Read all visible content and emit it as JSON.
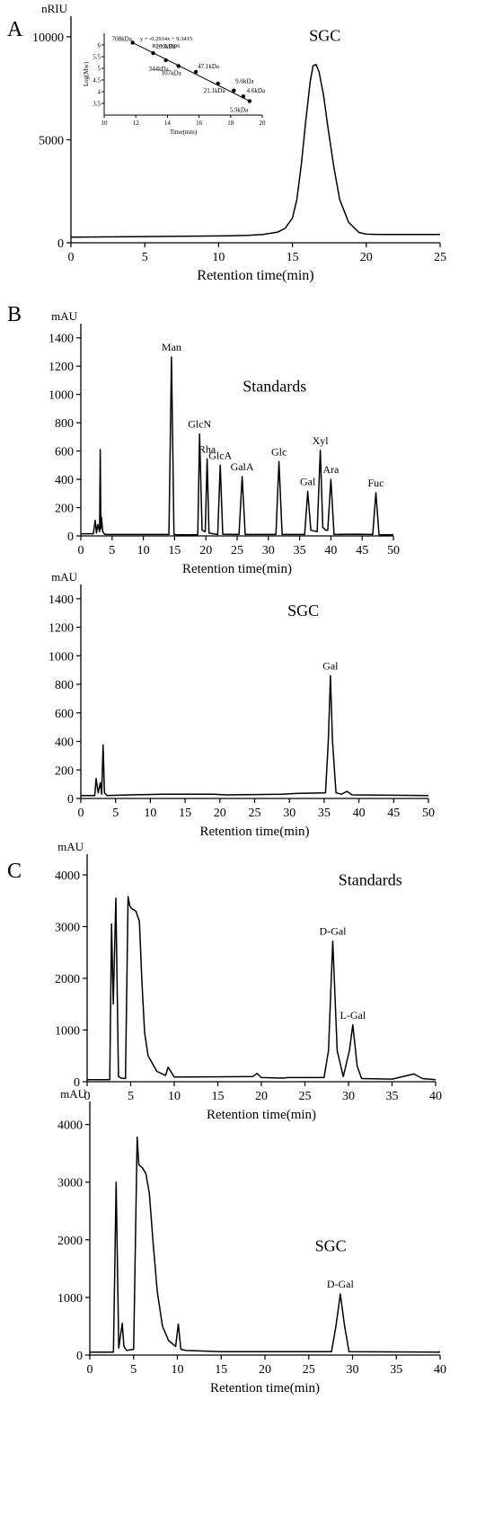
{
  "chart_data": [
    {
      "panel": "A",
      "type": "line",
      "ylabel": "nRIU",
      "xlabel": "Retention time(min)",
      "xlim": [
        0,
        25
      ],
      "ylim": [
        0,
        11000
      ],
      "xticks": [
        0,
        5,
        10,
        15,
        20,
        25
      ],
      "yticks": [
        0,
        5000,
        10000
      ],
      "annotations": [
        {
          "text": "SGC",
          "x": 17.2,
          "y": 9800
        }
      ],
      "series": [
        {
          "x": [
            0,
            5,
            10,
            12,
            13,
            14,
            14.5,
            15,
            15.3,
            15.6,
            15.9,
            16.2,
            16.4,
            16.6,
            16.8,
            17.1,
            17.4,
            17.8,
            18.2,
            18.8,
            19.5,
            20,
            20.5,
            21,
            25
          ],
          "y": [
            270,
            300,
            330,
            360,
            400,
            520,
            700,
            1200,
            2100,
            3800,
            5900,
            7800,
            8600,
            8650,
            8300,
            7200,
            5600,
            3700,
            2100,
            1000,
            500,
            420,
            410,
            405,
            400
          ]
        }
      ],
      "inset": {
        "type": "scatter",
        "xlabel": "Time(min)",
        "ylabel": "Log(Mw)",
        "xlim": [
          10,
          20
        ],
        "ylim": [
          3,
          6.5
        ],
        "xticks": [
          10,
          12,
          14,
          16,
          18,
          20
        ],
        "yticks": [
          3.5,
          4,
          4.5,
          5,
          5.5,
          6
        ],
        "equation": "y = -0.2914x + 9.3415",
        "r2": "R² = 0.9996",
        "points": [
          {
            "x": 11.8,
            "y": 6.1,
            "label": "708kDa"
          },
          {
            "x": 13.1,
            "y": 5.65,
            "label": "200kDa"
          },
          {
            "x": 13.9,
            "y": 5.35,
            "label": "344kDa"
          },
          {
            "x": 14.7,
            "y": 5.1,
            "label": "107kDa"
          },
          {
            "x": 15.8,
            "y": 4.85,
            "label": "47.1kDa"
          },
          {
            "x": 17.2,
            "y": 4.35,
            "label": "21.1kDa"
          },
          {
            "x": 18.2,
            "y": 4.05,
            "label": "9.6kDa"
          },
          {
            "x": 18.8,
            "y": 3.8,
            "label": "4.6kDa"
          },
          {
            "x": 19.2,
            "y": 3.6,
            "label": "5.9kDa"
          }
        ]
      }
    },
    {
      "panel": "B",
      "type": "line",
      "ylabel": "mAU",
      "xlabel": "Retention time(min)",
      "xlim": [
        0,
        50
      ],
      "ylim": [
        0,
        1500
      ],
      "xticks": [
        0,
        5,
        10,
        15,
        20,
        25,
        30,
        35,
        40,
        45,
        50
      ],
      "yticks": [
        0,
        200,
        400,
        600,
        800,
        1000,
        1200,
        1400
      ],
      "annotations": [
        {
          "text": "Standards",
          "x": 31,
          "y": 1020
        }
      ],
      "peaks": [
        {
          "name": "Man",
          "x": 14.5,
          "y": 1265
        },
        {
          "name": "GlcN",
          "x": 19.0,
          "y": 720
        },
        {
          "name": "Rha",
          "x": 20.2,
          "y": 545
        },
        {
          "name": "GlcA",
          "x": 22.3,
          "y": 500
        },
        {
          "name": "GalA",
          "x": 25.8,
          "y": 420
        },
        {
          "name": "Glc",
          "x": 31.7,
          "y": 525
        },
        {
          "name": "Gal",
          "x": 36.3,
          "y": 315
        },
        {
          "name": "Xyl",
          "x": 38.3,
          "y": 605
        },
        {
          "name": "Ara",
          "x": 40.0,
          "y": 400
        },
        {
          "name": "Fuc",
          "x": 47.2,
          "y": 305
        }
      ],
      "series": [
        {
          "x": [
            0,
            2,
            2.3,
            2.5,
            2.7,
            3.0,
            3.1,
            3.2,
            3.3,
            3.5,
            3.8,
            4.2,
            14.1,
            14.5,
            14.9,
            15.3,
            18.7,
            19.0,
            19.4,
            19.9,
            20.2,
            20.5,
            21.9,
            22.3,
            22.7,
            25.3,
            25.8,
            26.3,
            31.2,
            31.7,
            32.2,
            35.8,
            36.3,
            36.8,
            37.8,
            38.3,
            38.7,
            39.2,
            39.5,
            40.0,
            40.5,
            44,
            46.7,
            47.2,
            47.7,
            50
          ],
          "y": [
            15,
            15,
            110,
            20,
            80,
            30,
            610,
            50,
            130,
            30,
            12,
            10,
            10,
            1265,
            10,
            8,
            8,
            720,
            40,
            30,
            545,
            20,
            10,
            500,
            12,
            10,
            420,
            10,
            10,
            525,
            10,
            10,
            315,
            40,
            30,
            605,
            60,
            40,
            40,
            400,
            10,
            12,
            10,
            305,
            8,
            8
          ]
        }
      ]
    },
    {
      "panel": "B",
      "type": "line",
      "ylabel": "mAU",
      "xlabel": "Retention time(min)",
      "xlim": [
        0,
        50
      ],
      "ylim": [
        0,
        1500
      ],
      "xticks": [
        0,
        5,
        10,
        15,
        20,
        25,
        30,
        35,
        40,
        45,
        50
      ],
      "yticks": [
        0,
        200,
        400,
        600,
        800,
        1000,
        1200,
        1400
      ],
      "annotations": [
        {
          "text": "SGC",
          "x": 32,
          "y": 1280
        }
      ],
      "peaks": [
        {
          "name": "Gal",
          "x": 35.9,
          "y": 860
        }
      ],
      "series": [
        {
          "x": [
            0,
            2,
            2.2,
            2.5,
            2.8,
            3.0,
            3.2,
            3.4,
            3.8,
            7,
            12,
            19,
            21,
            29,
            31,
            35.2,
            35.6,
            35.9,
            36.2,
            36.7,
            37.5,
            38.3,
            39,
            50
          ],
          "y": [
            20,
            20,
            140,
            40,
            110,
            30,
            375,
            40,
            20,
            25,
            30,
            30,
            25,
            30,
            35,
            40,
            400,
            860,
            400,
            40,
            30,
            50,
            25,
            20
          ]
        }
      ]
    },
    {
      "panel": "C",
      "type": "line",
      "ylabel": "mAU",
      "xlabel": "Retention time(min)",
      "xlim": [
        0,
        40
      ],
      "ylim": [
        0,
        4400
      ],
      "xticks": [
        0,
        5,
        10,
        15,
        20,
        25,
        30,
        35,
        40
      ],
      "yticks": [
        0,
        1000,
        2000,
        3000,
        4000
      ],
      "annotations": [
        {
          "text": "Standards",
          "x": 32.5,
          "y": 3800
        }
      ],
      "peaks": [
        {
          "name": "D-Gal",
          "x": 28.2,
          "y": 2720
        },
        {
          "name": "L-Gal",
          "x": 30.5,
          "y": 1100
        }
      ],
      "series": [
        {
          "x": [
            0,
            2.6,
            2.8,
            3.0,
            3.3,
            3.6,
            3.9,
            4.4,
            4.7,
            4.9,
            5.1,
            5.6,
            6.0,
            6.3,
            6.6,
            7,
            8,
            9,
            9.3,
            10,
            11,
            19,
            19.5,
            20,
            22.5,
            23,
            27.2,
            27.7,
            28.2,
            28.7,
            29.4,
            30.1,
            30.5,
            31.0,
            31.5,
            35,
            37.5,
            38.5,
            40
          ],
          "y": [
            40,
            40,
            3050,
            1500,
            3550,
            100,
            70,
            60,
            3580,
            3400,
            3350,
            3300,
            3100,
            1900,
            950,
            500,
            200,
            120,
            280,
            90,
            90,
            100,
            160,
            80,
            70,
            80,
            80,
            600,
            2720,
            600,
            100,
            600,
            1100,
            300,
            60,
            50,
            150,
            60,
            40
          ]
        }
      ]
    },
    {
      "panel": "C",
      "type": "line",
      "ylabel": "mAU",
      "xlabel": "Retention time(min)",
      "xlim": [
        0,
        40
      ],
      "ylim": [
        0,
        4400
      ],
      "xticks": [
        0,
        5,
        10,
        15,
        20,
        25,
        30,
        35,
        40
      ],
      "yticks": [
        0,
        1000,
        2000,
        3000,
        4000
      ],
      "annotations": [
        {
          "text": "SGC",
          "x": 27.5,
          "y": 1800
        }
      ],
      "peaks": [
        {
          "name": "D-Gal",
          "x": 28.6,
          "y": 1060
        }
      ],
      "series": [
        {
          "x": [
            0,
            2.7,
            3.0,
            3.3,
            3.7,
            3.9,
            4.2,
            5.0,
            5.4,
            5.6,
            6.0,
            6.4,
            6.8,
            7.2,
            7.7,
            8.3,
            9,
            9.8,
            10.1,
            10.4,
            11,
            15,
            27.6,
            28.1,
            28.6,
            29.1,
            29.6,
            40
          ],
          "y": [
            50,
            50,
            3000,
            120,
            550,
            150,
            80,
            100,
            3780,
            3300,
            3250,
            3150,
            2800,
            2000,
            1100,
            500,
            250,
            150,
            540,
            100,
            80,
            60,
            60,
            500,
            1060,
            500,
            60,
            50
          ]
        }
      ]
    }
  ],
  "panel_letters": [
    "A",
    "B",
    "C"
  ]
}
